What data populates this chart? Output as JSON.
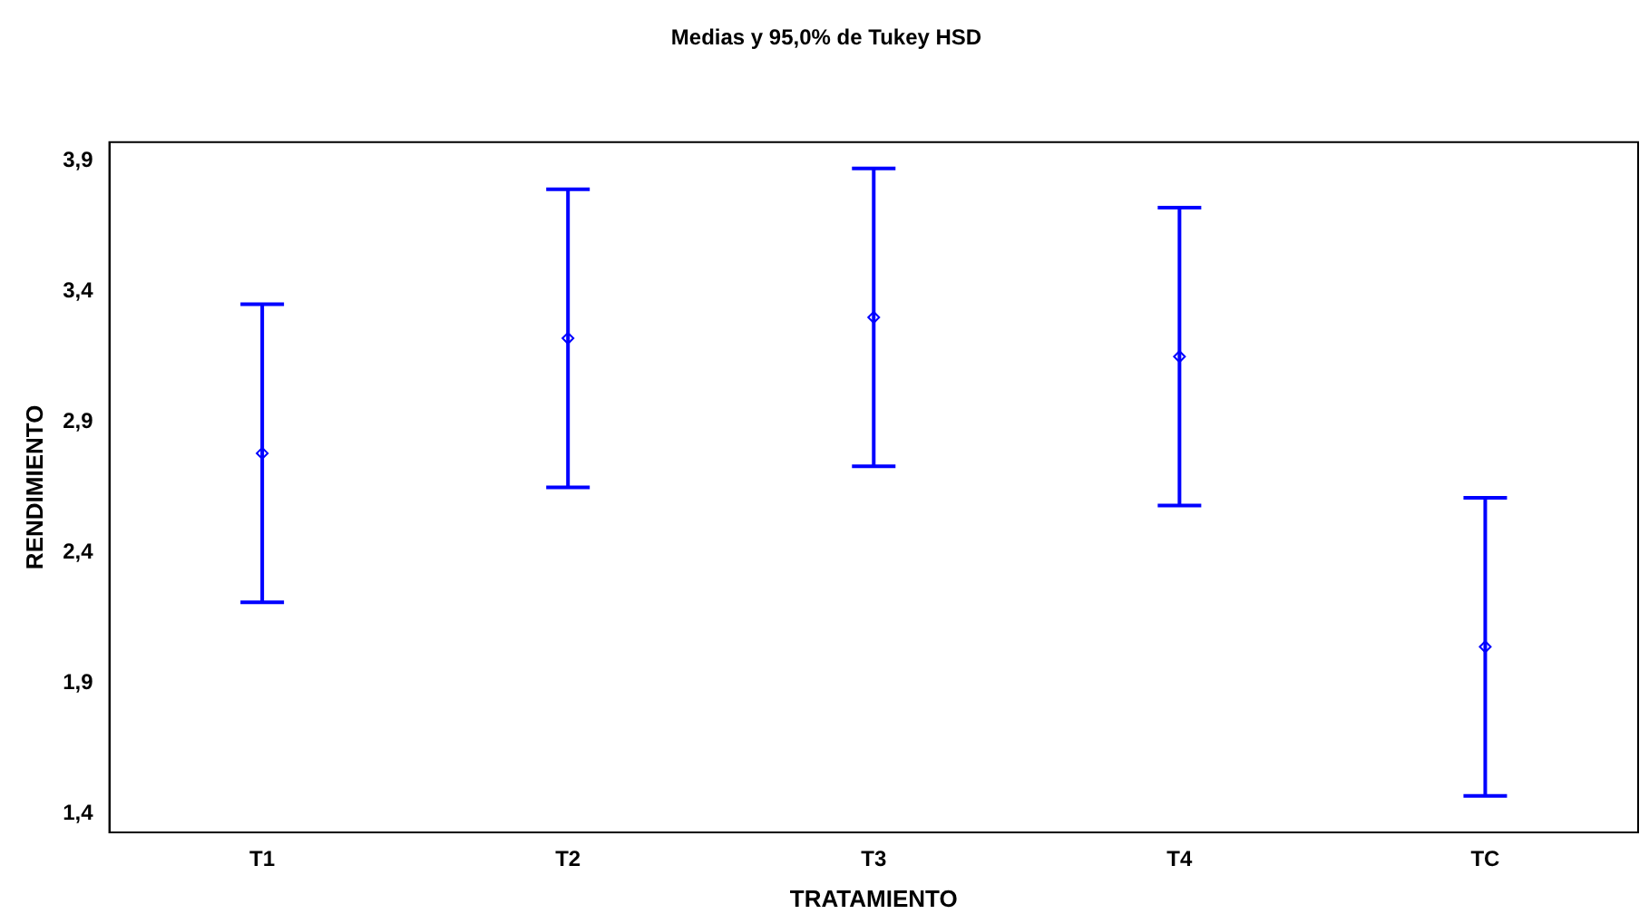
{
  "chart_data": {
    "type": "scatter",
    "title": "Medias y 95,0% de Tukey HSD",
    "xlabel": "TRATAMIENTO",
    "ylabel": "RENDIMIENTO",
    "categories": [
      "T1",
      "T2",
      "T3",
      "T4",
      "TC"
    ],
    "series": [
      {
        "color": "#0000ff",
        "values": [
          2.78,
          3.22,
          3.3,
          3.15,
          2.04
        ],
        "errors": [
          0.57,
          0.57,
          0.57,
          0.57,
          0.57
        ]
      }
    ],
    "ylim": [
      1.33,
      3.97
    ],
    "yticks": [
      {
        "value": 1.4,
        "label": "1,4"
      },
      {
        "value": 1.9,
        "label": "1,9"
      },
      {
        "value": 2.4,
        "label": "2,4"
      },
      {
        "value": 2.9,
        "label": "2,9"
      },
      {
        "value": 3.4,
        "label": "3,4"
      },
      {
        "value": 3.9,
        "label": "3,9"
      }
    ],
    "grid": false,
    "legend": false,
    "marker": "diamond"
  }
}
